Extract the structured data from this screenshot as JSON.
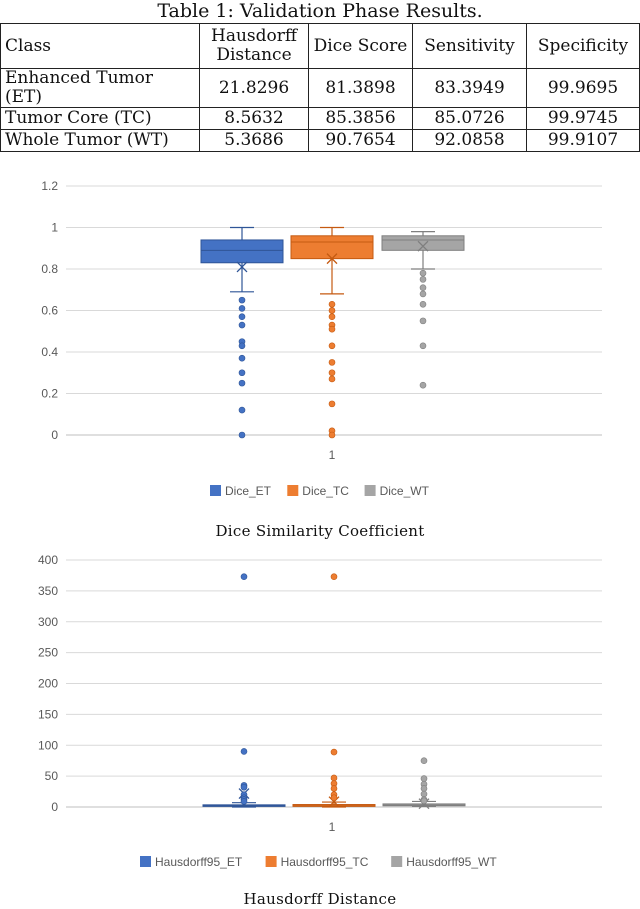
{
  "table": {
    "caption": "Table 1: Validation Phase Results.",
    "headers": [
      "Class",
      "Hausdorff Distance",
      "Dice Score",
      "Sensitivity",
      "Specificity"
    ],
    "rows": [
      [
        "Enhanced Tumor (ET)",
        "21.8296",
        "81.3898",
        "83.3949",
        "99.9695"
      ],
      [
        "Tumor Core (TC)",
        "8.5632",
        "85.3856",
        "85.0726",
        "99.9745"
      ],
      [
        "Whole Tumor (WT)",
        "5.3686",
        "90.7654",
        "92.0858",
        "99.9107"
      ]
    ]
  },
  "colors": {
    "ET": "#4472c4",
    "TC": "#ed7d31",
    "WT": "#a5a5a5",
    "grid": "#d9d9d9",
    "axis": "#bfbfbf"
  },
  "chart_data": [
    {
      "type": "box",
      "caption": "Dice Similarity Coefficient",
      "categories": [
        "1"
      ],
      "ylim": [
        0,
        1.2
      ],
      "yticks": [
        "0",
        "0.2",
        "0.4",
        "0.6",
        "0.8",
        "1",
        "1.2"
      ],
      "ytick_values": [
        0,
        0.2,
        0.4,
        0.6,
        0.8,
        1.0,
        1.2
      ],
      "series": [
        {
          "name": "Dice_ET",
          "color": "#4472c4",
          "q1": 0.83,
          "median": 0.89,
          "q3": 0.94,
          "whisker_low": 0.69,
          "whisker_high": 1.0,
          "mean": 0.81,
          "outliers": [
            0.65,
            0.61,
            0.57,
            0.53,
            0.45,
            0.43,
            0.37,
            0.3,
            0.25,
            0.12,
            0.0
          ]
        },
        {
          "name": "Dice_TC",
          "color": "#ed7d31",
          "q1": 0.85,
          "median": 0.93,
          "q3": 0.96,
          "whisker_low": 0.68,
          "whisker_high": 1.0,
          "mean": 0.85,
          "outliers": [
            0.63,
            0.6,
            0.57,
            0.53,
            0.51,
            0.43,
            0.35,
            0.3,
            0.27,
            0.15,
            0.02,
            0.0
          ]
        },
        {
          "name": "Dice_WT",
          "color": "#a5a5a5",
          "q1": 0.89,
          "median": 0.94,
          "q3": 0.96,
          "whisker_low": 0.8,
          "whisker_high": 0.98,
          "mean": 0.91,
          "outliers": [
            0.78,
            0.75,
            0.71,
            0.68,
            0.63,
            0.55,
            0.43,
            0.24
          ]
        }
      ]
    },
    {
      "type": "box",
      "caption": "Hausdorff Distance",
      "categories": [
        "1"
      ],
      "ylim": [
        0,
        400
      ],
      "yticks": [
        "0",
        "50",
        "100",
        "150",
        "200",
        "250",
        "300",
        "350",
        "400"
      ],
      "ytick_values": [
        0,
        50,
        100,
        150,
        200,
        250,
        300,
        350,
        400
      ],
      "series": [
        {
          "name": "Hausdorff95_ET",
          "color": "#4472c4",
          "q1": 1.0,
          "median": 2.0,
          "q3": 3.5,
          "whisker_low": 0.0,
          "whisker_high": 7.0,
          "mean": 21.8,
          "outliers": [
            373,
            90,
            35,
            32,
            20,
            15,
            12,
            9
          ]
        },
        {
          "name": "Hausdorff95_TC",
          "color": "#ed7d31",
          "q1": 1.0,
          "median": 2.0,
          "q3": 4.0,
          "whisker_low": 0.0,
          "whisker_high": 8.0,
          "mean": 8.6,
          "outliers": [
            373,
            89,
            47,
            38,
            30,
            20,
            15
          ]
        },
        {
          "name": "Hausdorff95_WT",
          "color": "#a5a5a5",
          "q1": 2.0,
          "median": 3.0,
          "q3": 5.0,
          "whisker_low": 1.0,
          "whisker_high": 9.0,
          "mean": 5.4,
          "outliers": [
            75,
            46,
            37,
            30,
            21,
            12,
            10
          ]
        }
      ]
    }
  ]
}
